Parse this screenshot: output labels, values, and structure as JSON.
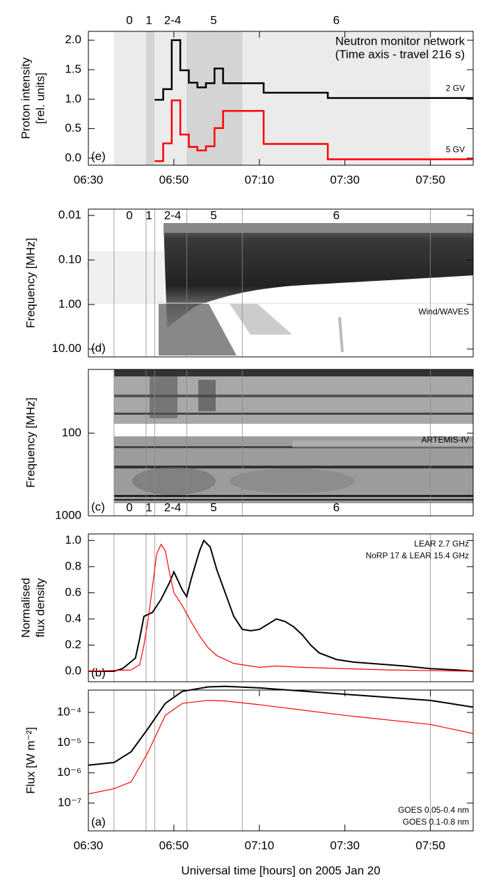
{
  "chart_data": [
    {
      "type": "step",
      "panel_label": "(e)",
      "ylabel": [
        "Proton intensity",
        "[rel. units]"
      ],
      "annotations": [
        "Neutron monitor network",
        "(Time axis - travel 216 s)"
      ],
      "xlim": [
        "06:30",
        "08:00"
      ],
      "xticks": [
        "06:30",
        "06:50",
        "07:10",
        "07:30",
        "07:50"
      ],
      "ylim": [
        -0.12,
        2.15
      ],
      "yticks": [
        {
          "value": 0,
          "label": "0.0"
        },
        {
          "value": 0.5,
          "label": "0.5"
        },
        {
          "value": 1,
          "label": "1.0"
        },
        {
          "value": 1.5,
          "label": "1.5"
        },
        {
          "value": 2,
          "label": "2.0"
        }
      ],
      "regions": [
        {
          "start": "06:36",
          "end": "07:50",
          "shade": "#ebebeb"
        },
        {
          "start": "06:43:30",
          "end": "06:45:30",
          "shade": "#d4d4d4"
        },
        {
          "start": "06:53",
          "end": "07:06",
          "shade": "#d4d4d4"
        }
      ],
      "events": [
        {
          "label": "0",
          "x": "06:39:36"
        },
        {
          "label": "1",
          "x": "06:44:10"
        },
        {
          "label": "2-4",
          "x": "06:49:42"
        },
        {
          "label": "5",
          "x": "06:59:18"
        },
        {
          "label": "6",
          "x": "07:28"
        }
      ],
      "series": [
        {
          "name": "2 GV",
          "color": "#000000",
          "x": [
            "06:45:30",
            "06:47:30",
            "06:49:30",
            "06:51:30",
            "06:53:30",
            "06:55:30",
            "06:57:30",
            "06:59:30",
            "07:01:30",
            "07:11",
            "07:26",
            "08:00"
          ],
          "values": [
            0.99,
            1.17,
            2.0,
            1.49,
            1.28,
            1.2,
            1.27,
            1.52,
            1.27,
            1.11,
            1.02,
            1.02
          ]
        },
        {
          "name": "5 GV",
          "color": "#ff0000",
          "x": [
            "06:45:30",
            "06:47:30",
            "06:49:30",
            "06:51:30",
            "06:53:30",
            "06:55:30",
            "06:57:30",
            "06:59:30",
            "07:01:30",
            "07:11",
            "07:26",
            "08:00"
          ],
          "values": [
            -0.05,
            0.25,
            0.98,
            0.4,
            0.19,
            0.13,
            0.2,
            0.51,
            0.8,
            0.24,
            -0.02,
            -0.02
          ]
        }
      ]
    },
    {
      "type": "spectrogram",
      "panel_label": "(d)",
      "ylabel": "Frequency [MHz]",
      "instrument": "Wind/WAVES",
      "xlim": [
        "06:30",
        "08:00"
      ],
      "log": true,
      "inverted": true,
      "ylim": [
        0.0072,
        15
      ],
      "yticks": [
        0.01,
        {
          "value": 0.1,
          "label": "0.10"
        },
        {
          "value": 1,
          "label": "1.00"
        },
        {
          "value": 10,
          "label": "10.00"
        }
      ]
    },
    {
      "type": "spectrogram",
      "panel_label": "(c)",
      "ylabel": "Frequency [MHz]",
      "instrument": "ARTEMIS-IV",
      "xlim": [
        "06:30",
        "08:00"
      ],
      "log": true,
      "inverted": true,
      "ylim": [
        17,
        1000
      ],
      "yticks": [
        100,
        1000
      ]
    },
    {
      "type": "line",
      "panel_label": "(b)",
      "ylabel": [
        "Normalised",
        "flux density"
      ],
      "legend": "upper right",
      "xlim": [
        "06:30",
        "08:00"
      ],
      "ylim": [
        -0.08,
        1.05
      ],
      "yticks": [
        {
          "value": 0,
          "label": "0.0"
        },
        {
          "value": 0.2,
          "label": "0.2"
        },
        {
          "value": 0.4,
          "label": "0.4"
        },
        {
          "value": 0.6,
          "label": "0.6"
        },
        {
          "value": 0.8,
          "label": "0.8"
        },
        {
          "value": 1,
          "label": "1.0"
        }
      ],
      "series": [
        {
          "name": "LEAR 2.7 GHz",
          "color": "#000000",
          "x": [
            "06:30",
            "06:36",
            "06:38",
            "06:41",
            "06:42",
            "06:43",
            "06:45",
            "06:47",
            "06:49",
            "06:50",
            "06:52",
            "06:53",
            "06:54",
            "06:56",
            "06:57",
            "06:58:30",
            "07:00",
            "07:02",
            "07:04",
            "07:06",
            "07:08",
            "07:10",
            "07:12",
            "07:14",
            "07:16",
            "07:18",
            "07:20",
            "07:22",
            "07:24",
            "07:28",
            "07:32",
            "07:36",
            "07:40",
            "07:44",
            "07:50",
            "07:56",
            "08:00"
          ],
          "values": [
            0,
            0,
            0.02,
            0.1,
            0.25,
            0.42,
            0.45,
            0.55,
            0.68,
            0.76,
            0.62,
            0.57,
            0.7,
            0.92,
            1.0,
            0.95,
            0.78,
            0.6,
            0.42,
            0.32,
            0.31,
            0.32,
            0.36,
            0.4,
            0.38,
            0.34,
            0.28,
            0.2,
            0.14,
            0.09,
            0.07,
            0.06,
            0.05,
            0.04,
            0.02,
            0.01,
            0
          ]
        },
        {
          "name": "NoRP 17 & LEAR 15.4 GHz",
          "color": "#ff0000",
          "x": [
            "06:30",
            "06:40",
            "06:42",
            "06:43",
            "06:44",
            "06:45",
            "06:46",
            "06:47",
            "06:48",
            "06:49",
            "06:50",
            "06:52",
            "06:54",
            "06:56",
            "06:58",
            "07:00",
            "07:04",
            "07:10",
            "07:14",
            "07:20",
            "07:30",
            "07:40",
            "08:00"
          ],
          "values": [
            0,
            0.01,
            0.05,
            0.2,
            0.4,
            0.65,
            0.9,
            0.97,
            0.92,
            0.75,
            0.6,
            0.5,
            0.38,
            0.27,
            0.18,
            0.12,
            0.06,
            0.03,
            0.04,
            0.03,
            0.02,
            0.01,
            0
          ]
        }
      ]
    },
    {
      "type": "line",
      "panel_label": "(a)",
      "ylabel": "Flux [W m⁻²]",
      "xlabel": "Universal time [hours] on 2005 Jan 20",
      "legend": "lower right",
      "xlim": [
        "06:30",
        "08:00"
      ],
      "xticks": [
        "06:30",
        "06:50",
        "07:10",
        "07:30",
        "07:50"
      ],
      "log": true,
      "ylim": [
        1.2e-08,
        0.00055
      ],
      "yticks": [
        {
          "value": 1e-07,
          "label": "10⁻⁷"
        },
        {
          "value": 1e-06,
          "label": "10⁻⁶"
        },
        {
          "value": 1e-05,
          "label": "10⁻⁵"
        },
        {
          "value": 0.0001,
          "label": "10⁻⁴"
        }
      ],
      "series": [
        {
          "name": "GOES 0.05-0.4 nm",
          "color": "#ff0000",
          "x": [
            "06:30",
            "06:36",
            "06:40",
            "06:44",
            "06:48",
            "06:52",
            "06:58",
            "07:02",
            "07:10",
            "07:30",
            "07:50",
            "08:00"
          ],
          "values": [
            2e-07,
            3e-07,
            5e-07,
            5e-06,
            8e-05,
            0.0002,
            0.00025,
            0.00024,
            0.00018,
            8e-05,
            4e-05,
            2e-05
          ]
        },
        {
          "name": "GOES 0.1-0.8 nm",
          "color": "#000000",
          "x": [
            "06:30",
            "06:36",
            "06:40",
            "06:44",
            "06:48",
            "06:52",
            "06:58",
            "07:02",
            "07:10",
            "07:30",
            "07:50",
            "08:00"
          ],
          "values": [
            1.8e-06,
            2.2e-06,
            5e-06,
            3e-05,
            0.0002,
            0.0005,
            0.0007,
            0.00073,
            0.00065,
            0.0004,
            0.00025,
            0.00015
          ]
        }
      ]
    }
  ]
}
